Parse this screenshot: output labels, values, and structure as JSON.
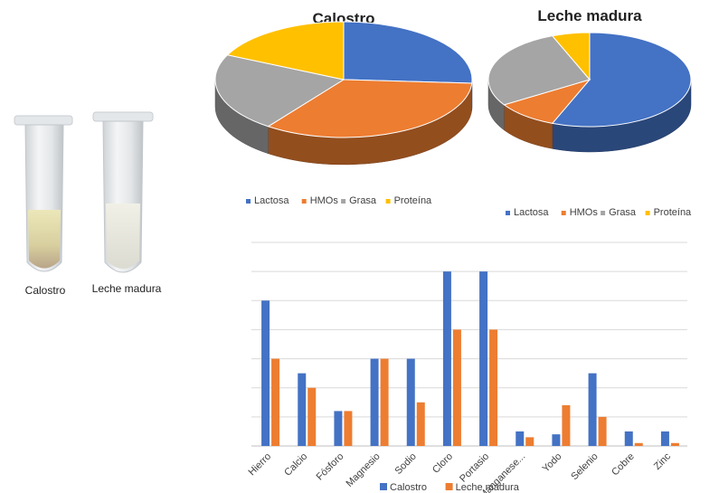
{
  "photo": {
    "tube_labels": [
      "Calostro",
      "Leche madura"
    ]
  },
  "colors": {
    "lactosa": "#4472c4",
    "hmos": "#ed7d31",
    "grasa": "#a5a5a5",
    "proteina": "#ffc000",
    "calostro": "#4472c4",
    "leche_madura": "#ed7d31"
  },
  "chart_data": [
    {
      "type": "pie",
      "title": "Calostro",
      "categories": [
        "Lactosa",
        "HMOs",
        "Grasa",
        "Proteína"
      ],
      "values": [
        26,
        34,
        22,
        18
      ],
      "legend_position": "bottom"
    },
    {
      "type": "pie",
      "title": "Leche madura",
      "categories": [
        "Lactosa",
        "HMOs",
        "Grasa",
        "Proteína"
      ],
      "values": [
        56,
        10,
        28,
        6
      ],
      "legend_position": "bottom"
    },
    {
      "type": "bar",
      "title": "",
      "categories": [
        "Hierro",
        "Calcio",
        "Fósforo",
        "Magnesio",
        "Sodio",
        "Cloro",
        "Portasio",
        "Manganese...",
        "Yodo",
        "Selenio",
        "Cobre",
        "Zinc"
      ],
      "series": [
        {
          "name": "Calostro",
          "values": [
            5.0,
            2.5,
            1.2,
            3.0,
            3.0,
            6.0,
            6.0,
            0.5,
            0.4,
            2.5,
            0.5,
            0.5
          ]
        },
        {
          "name": "Leche madura",
          "values": [
            3.0,
            2.0,
            1.2,
            3.0,
            1.5,
            4.0,
            4.0,
            0.3,
            1.4,
            1.0,
            0.1,
            0.1
          ]
        }
      ],
      "ylim": [
        0,
        7
      ],
      "grid": true,
      "xlabel": "",
      "ylabel": "",
      "legend_position": "bottom"
    }
  ]
}
